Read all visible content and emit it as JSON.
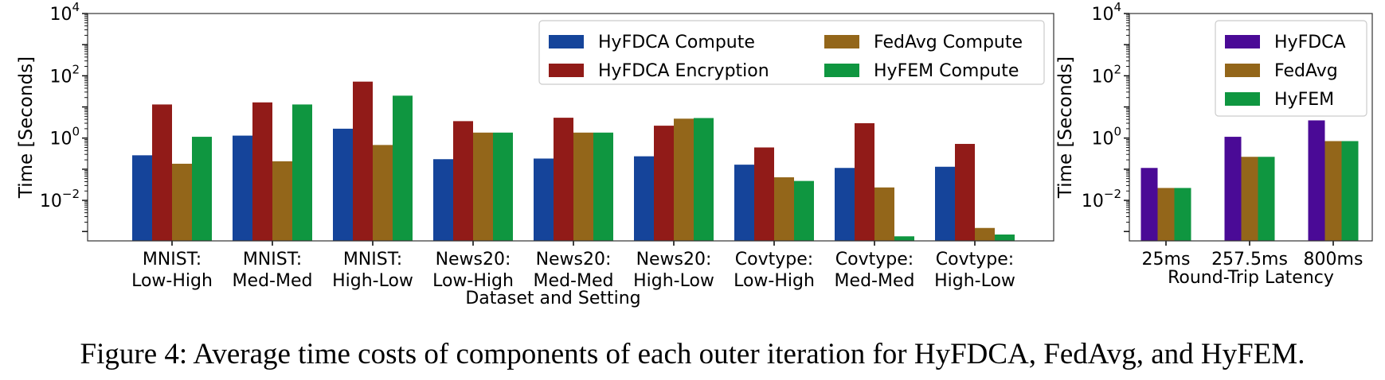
{
  "figure": {
    "caption": "Figure 4: Average time costs of components of each outer iteration for HyFDCA, FedAvg, and HyFEM."
  },
  "chart_data": [
    {
      "type": "bar",
      "log_scale_y": true,
      "ylabel": "Time [Seconds]",
      "xlabel": "Dataset and Setting",
      "ylim": [
        0.0005,
        10000
      ],
      "y_ticks": [
        {
          "base": "10",
          "exp": "−2",
          "value": 0.01
        },
        {
          "base": "10",
          "exp": "0",
          "value": 1
        },
        {
          "base": "10",
          "exp": "2",
          "value": 100
        },
        {
          "base": "10",
          "exp": "4",
          "value": 10000
        }
      ],
      "categories": [
        [
          "MNIST:",
          "Low-High"
        ],
        [
          "MNIST:",
          "Med-Med"
        ],
        [
          "MNIST:",
          "High-Low"
        ],
        [
          "News20:",
          "Low-High"
        ],
        [
          "News20:",
          "Med-Med"
        ],
        [
          "News20:",
          "High-Low"
        ],
        [
          "Covtype:",
          "Low-High"
        ],
        [
          "Covtype:",
          "Med-Med"
        ],
        [
          "Covtype:",
          "High-Low"
        ]
      ],
      "series": [
        {
          "name": "HyFDCA Compute",
          "color": "#15449A",
          "values": [
            0.28,
            1.2,
            2.0,
            0.21,
            0.22,
            0.26,
            0.14,
            0.11,
            0.12
          ]
        },
        {
          "name": "HyFDCA Encryption",
          "color": "#911B18",
          "values": [
            12,
            14,
            65,
            3.5,
            4.5,
            2.5,
            0.5,
            3.0,
            0.65
          ]
        },
        {
          "name": "FedAvg Compute",
          "color": "#93661A",
          "values": [
            0.15,
            0.18,
            0.6,
            1.5,
            1.5,
            4.2,
            0.055,
            0.026,
            0.0013
          ]
        },
        {
          "name": "HyFEM Compute",
          "color": "#0F9640",
          "values": [
            1.1,
            12,
            23,
            1.5,
            1.5,
            4.4,
            0.042,
            0.0007,
            0.0008
          ]
        }
      ],
      "legend": {
        "placement": "top-right",
        "columns": 2
      },
      "grid": false
    },
    {
      "type": "bar",
      "log_scale_y": true,
      "ylabel": "Time [Seconds]",
      "xlabel": "Round-Trip Latency",
      "ylim": [
        0.0005,
        10000
      ],
      "y_ticks": [
        {
          "base": "10",
          "exp": "−2",
          "value": 0.01
        },
        {
          "base": "10",
          "exp": "0",
          "value": 1
        },
        {
          "base": "10",
          "exp": "2",
          "value": 100
        },
        {
          "base": "10",
          "exp": "4",
          "value": 10000
        }
      ],
      "categories": [
        [
          "25ms"
        ],
        [
          "257.5ms"
        ],
        [
          "800ms"
        ]
      ],
      "series": [
        {
          "name": "HyFDCA",
          "color": "#4A0A96",
          "values": [
            0.11,
            1.1,
            3.7
          ]
        },
        {
          "name": "FedAvg",
          "color": "#93661A",
          "values": [
            0.025,
            0.25,
            0.8
          ]
        },
        {
          "name": "HyFEM",
          "color": "#0F9640",
          "values": [
            0.025,
            0.25,
            0.8
          ]
        }
      ],
      "legend": {
        "placement": "top-right",
        "columns": 1
      },
      "grid": false
    }
  ]
}
